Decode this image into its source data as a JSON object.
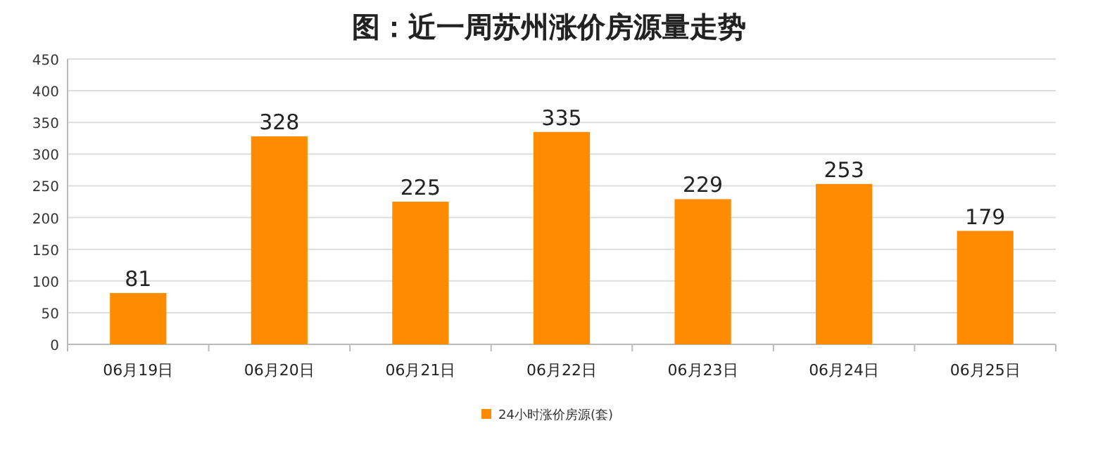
{
  "chart_data": {
    "type": "bar",
    "title": "图：近一周苏州涨价房源量走势",
    "categories": [
      "06月19日",
      "06月20日",
      "06月21日",
      "06月22日",
      "06月23日",
      "06月24日",
      "06月25日"
    ],
    "series": [
      {
        "name": "24小时涨价房源(套)",
        "color": "#ff8c00",
        "values": [
          81,
          328,
          225,
          335,
          229,
          253,
          179
        ]
      }
    ],
    "ylim": [
      0,
      450
    ],
    "yticks": [
      0,
      50,
      100,
      150,
      200,
      250,
      300,
      350,
      400,
      450
    ],
    "grid": "y",
    "data_labels": true,
    "legend": "bottom"
  }
}
